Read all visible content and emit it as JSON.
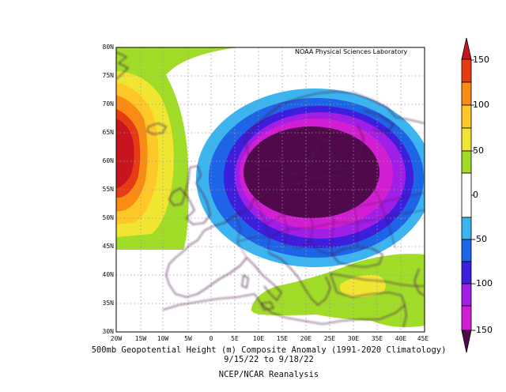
{
  "credit": "NOAA Physical Sciences Laboratory",
  "caption": {
    "line1": "500mb Geopotential Height (m) Composite Anomaly (1991-2020 Climatology)",
    "line2": "9/15/22 to 9/18/22",
    "line3": "NCEP/NCAR Reanalysis"
  },
  "axes": {
    "lat_labels": [
      "80N",
      "75N",
      "70N",
      "65N",
      "60N",
      "55N",
      "50N",
      "45N",
      "40N",
      "35N",
      "30N"
    ],
    "lon_labels": [
      "20W",
      "15W",
      "10W",
      "5W",
      "0",
      "5E",
      "10E",
      "15E",
      "20E",
      "25E",
      "30E",
      "35E",
      "40E",
      "45E"
    ]
  },
  "colorbar": {
    "labels": [
      "150",
      "100",
      "50",
      "0",
      "-50",
      "-100",
      "-150"
    ],
    "colors": {
      "p150": "#c8141e",
      "p125": "#e63c14",
      "p100": "#fa8c14",
      "p75": "#ffc828",
      "p50": "#f0e632",
      "p25": "#a0dc28",
      "zero": "#ffffff",
      "m25": "#3cb4f0",
      "m50": "#1e64e6",
      "m75": "#3c1edc",
      "m100": "#a01ee6",
      "m125": "#d21ed2",
      "m150": "#500a4c"
    }
  }
}
